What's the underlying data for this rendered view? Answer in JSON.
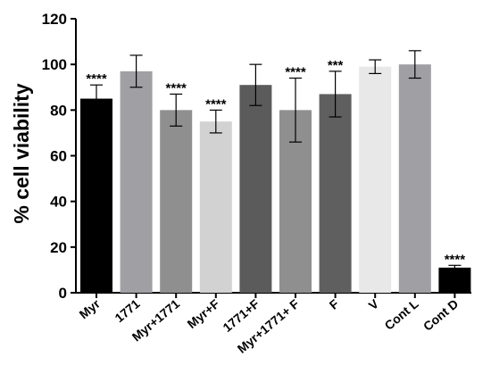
{
  "chart_data": {
    "type": "bar",
    "ylabel": "% cell viability",
    "xlabel": "",
    "ylim": [
      0,
      120
    ],
    "yticks": [
      0,
      20,
      40,
      60,
      80,
      100,
      120
    ],
    "grid": false,
    "legend": "none",
    "categories": [
      "Myr",
      "1771",
      "Myr+1771",
      "Myr+F",
      "1771+F",
      "Myr+1771+ F",
      "F",
      "V",
      "Cont L",
      "Cont D"
    ],
    "values": [
      85,
      97,
      80,
      75,
      91,
      80,
      87,
      99,
      100,
      11
    ],
    "error": [
      6,
      7,
      7,
      5,
      9,
      14,
      10,
      3,
      6,
      1
    ],
    "significance": [
      "****",
      "",
      "****",
      "****",
      "",
      "****",
      "***",
      "",
      "",
      "****"
    ],
    "colors": [
      "#000000",
      "#a0a0a4",
      "#8f8f8f",
      "#d2d2d2",
      "#5b5b5b",
      "#8f8f8f",
      "#5f5f5f",
      "#e8e8e8",
      "#a0a0a4",
      "#000000"
    ]
  }
}
